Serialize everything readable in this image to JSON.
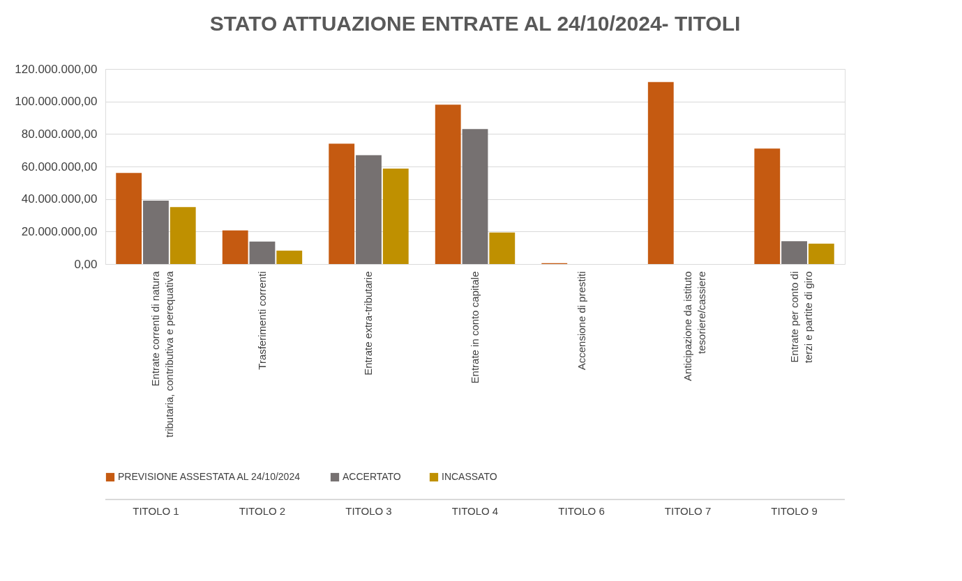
{
  "chart_data": {
    "type": "bar",
    "title": "STATO ATTUAZIONE ENTRATE AL 24/10/2024- TITOLI",
    "categories": [
      "Entrate correnti di natura tributaria, contributiva e perequativa",
      "Trasferimenti correnti",
      "Entrate extra-tributarie",
      "Entrate in conto capitale",
      "Accensione di prestiti",
      "Anticipazione da istituto tesoriere/cassiere",
      "Entrate per conto di terzi e partite di giro"
    ],
    "annotations": [
      "TITOLO 1",
      "TITOLO 2",
      "TITOLO 3",
      "TITOLO 4",
      "TITOLO 6",
      "TITOLO 7",
      "TITOLO  9"
    ],
    "series": [
      {
        "name": "PREVISIONE ASSESTATA AL 24/10/2024",
        "color": "#c55a11",
        "values": [
          56000000,
          20700000,
          74000000,
          98000000,
          500000,
          112000000,
          71000000
        ]
      },
      {
        "name": "ACCERTATO",
        "color": "#767171",
        "values": [
          39000000,
          13800000,
          67000000,
          83000000,
          0,
          0,
          14000000
        ]
      },
      {
        "name": "INCASSATO",
        "color": "#bf9000",
        "values": [
          35000000,
          8200000,
          58700000,
          19400000,
          0,
          0,
          12500000
        ]
      }
    ],
    "ylim": [
      0,
      120000000
    ],
    "yticks": [
      {
        "value": 0,
        "label": "0,00"
      },
      {
        "value": 20000000,
        "label": "20.000.000,00"
      },
      {
        "value": 40000000,
        "label": "40.000.000,00"
      },
      {
        "value": 60000000,
        "label": "60.000.000,00"
      },
      {
        "value": 80000000,
        "label": "80.000.000,00"
      },
      {
        "value": 100000000,
        "label": "100.000.000,00"
      },
      {
        "value": 120000000,
        "label": "120.000.000,00"
      }
    ],
    "grid": "y",
    "legend": "bottom"
  }
}
